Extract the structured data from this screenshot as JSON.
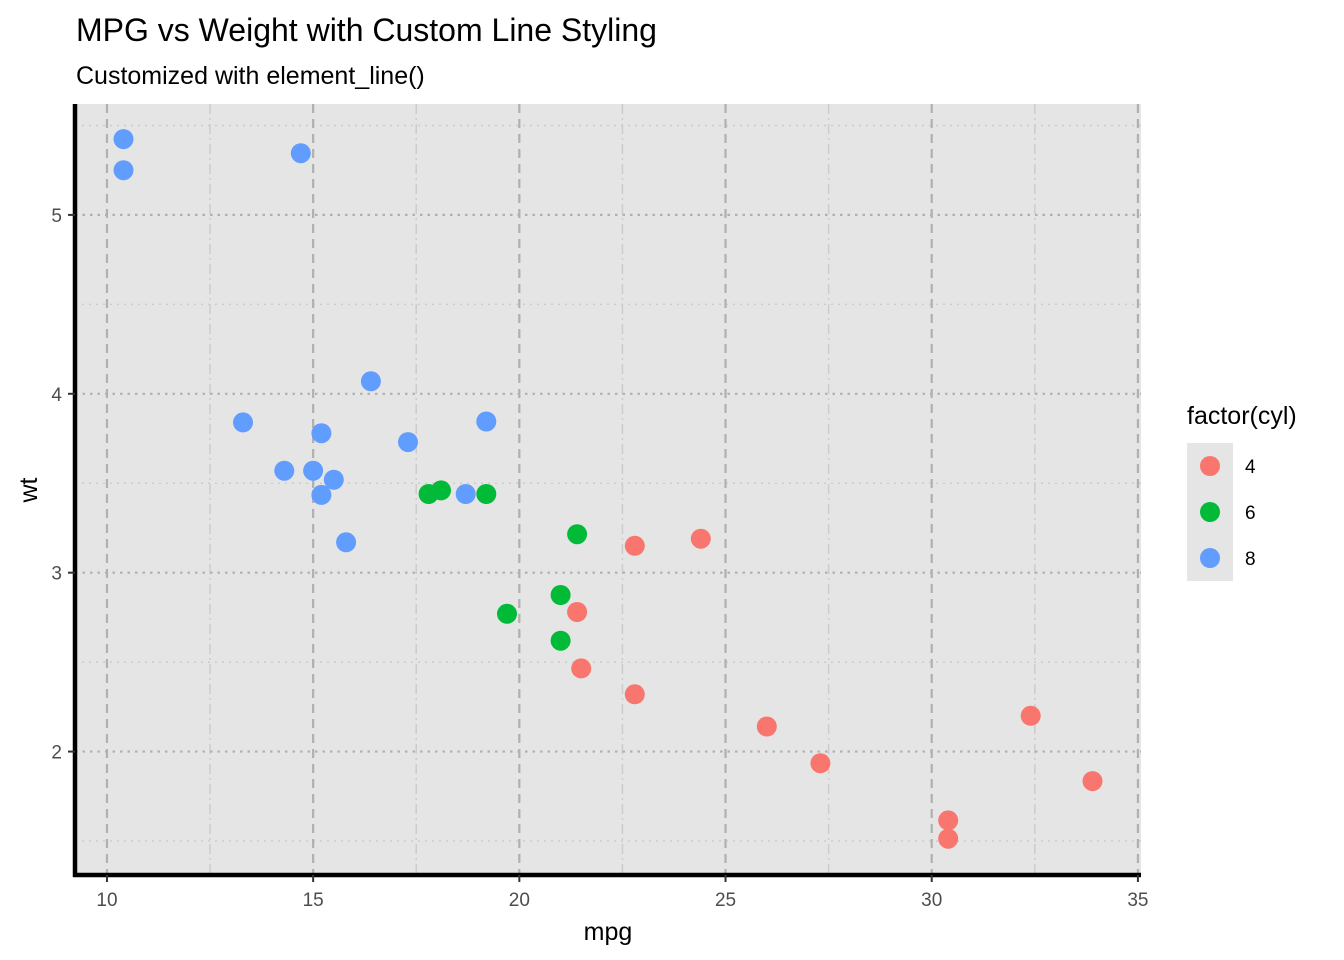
{
  "chart_data": {
    "type": "scatter",
    "title": "MPG vs Weight with Custom Line Styling",
    "subtitle": "Customized with element_line()",
    "xlabel": "mpg",
    "ylabel": "wt",
    "xlim": [
      9.225,
      35.075
    ],
    "ylim": [
      1.31,
      5.62
    ],
    "x_ticks": [
      10,
      15,
      20,
      25,
      30,
      35
    ],
    "y_ticks": [
      2,
      3,
      4,
      5
    ],
    "grid": true,
    "legend": {
      "title": "factor(cyl)",
      "placement": "right"
    },
    "series": [
      {
        "name": "4",
        "color": "#F8766D",
        "points": [
          [
            22.8,
            2.32
          ],
          [
            24.4,
            3.19
          ],
          [
            22.8,
            3.15
          ],
          [
            32.4,
            2.2
          ],
          [
            30.4,
            1.615
          ],
          [
            33.9,
            1.835
          ],
          [
            21.5,
            2.465
          ],
          [
            27.3,
            1.935
          ],
          [
            26.0,
            2.14
          ],
          [
            30.4,
            1.513
          ],
          [
            21.4,
            2.78
          ]
        ]
      },
      {
        "name": "6",
        "color": "#00BA38",
        "points": [
          [
            21.0,
            2.62
          ],
          [
            21.0,
            2.875
          ],
          [
            21.4,
            3.215
          ],
          [
            18.1,
            3.46
          ],
          [
            19.2,
            3.44
          ],
          [
            17.8,
            3.44
          ],
          [
            19.7,
            2.77
          ]
        ]
      },
      {
        "name": "8",
        "color": "#619CFF",
        "points": [
          [
            18.7,
            3.44
          ],
          [
            14.3,
            3.57
          ],
          [
            16.4,
            4.07
          ],
          [
            17.3,
            3.73
          ],
          [
            15.2,
            3.78
          ],
          [
            10.4,
            5.25
          ],
          [
            10.4,
            5.424
          ],
          [
            14.7,
            5.345
          ],
          [
            15.5,
            3.52
          ],
          [
            15.2,
            3.435
          ],
          [
            13.3,
            3.84
          ],
          [
            19.2,
            3.845
          ],
          [
            15.8,
            3.17
          ],
          [
            15.0,
            3.57
          ]
        ]
      }
    ]
  }
}
